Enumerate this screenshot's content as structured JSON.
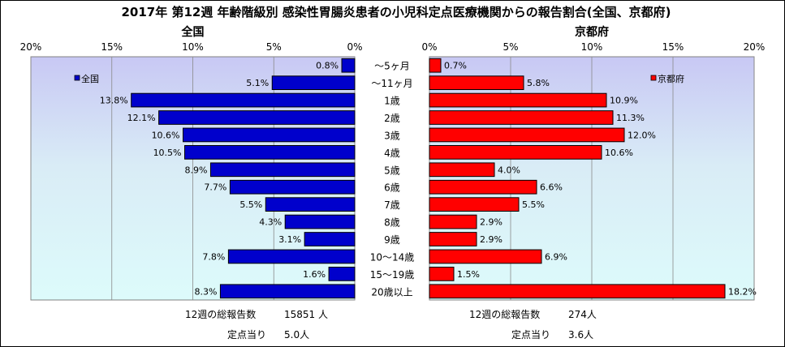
{
  "chart_data": {
    "type": "bar",
    "title": "2017年 第12週 年齢階級別 感染性胃腸炎患者の小児科定点医療機関からの報告割合(全国、京都府)",
    "categories": [
      "～5ヶ月",
      "～11ヶ月",
      "1歳",
      "2歳",
      "3歳",
      "4歳",
      "5歳",
      "6歳",
      "7歳",
      "8歳",
      "9歳",
      "10～14歳",
      "15～19歳",
      "20歳以上"
    ],
    "panels": [
      {
        "name": "全国",
        "legend": "全国",
        "color": "#0000cc",
        "xlim": [
          0,
          20
        ],
        "reversed": true,
        "ticks": [
          "0%",
          "5%",
          "10%",
          "15%",
          "20%"
        ],
        "values": [
          0.8,
          5.1,
          13.8,
          12.1,
          10.6,
          10.5,
          8.9,
          7.7,
          5.5,
          4.3,
          3.1,
          7.8,
          1.6,
          8.3
        ],
        "labels": [
          "0.8%",
          "5.1%",
          "13.8%",
          "12.1%",
          "10.6%",
          "10.5%",
          "8.9%",
          "7.7%",
          "5.5%",
          "4.3%",
          "3.1%",
          "7.8%",
          "1.6%",
          "8.3%"
        ],
        "footer": {
          "total_label": "12週の総報告数",
          "total_value": "15851 人",
          "per_label": "定点当り",
          "per_value": "5.0人"
        }
      },
      {
        "name": "京都府",
        "legend": "京都府",
        "color": "#ff0000",
        "xlim": [
          0,
          20
        ],
        "reversed": false,
        "ticks": [
          "0%",
          "5%",
          "10%",
          "15%",
          "20%"
        ],
        "values": [
          0.7,
          5.8,
          10.9,
          11.3,
          12.0,
          10.6,
          4.0,
          6.6,
          5.5,
          2.9,
          2.9,
          6.9,
          1.5,
          18.2
        ],
        "labels": [
          "0.7%",
          "5.8%",
          "10.9%",
          "11.3%",
          "12.0%",
          "10.6%",
          "4.0%",
          "6.6%",
          "5.5%",
          "2.9%",
          "2.9%",
          "6.9%",
          "1.5%",
          "18.2%"
        ],
        "footer": {
          "total_label": "12週の総報告数",
          "total_value": "274人",
          "per_label": "定点当り",
          "per_value": "3.6人"
        }
      }
    ],
    "grid": true
  }
}
